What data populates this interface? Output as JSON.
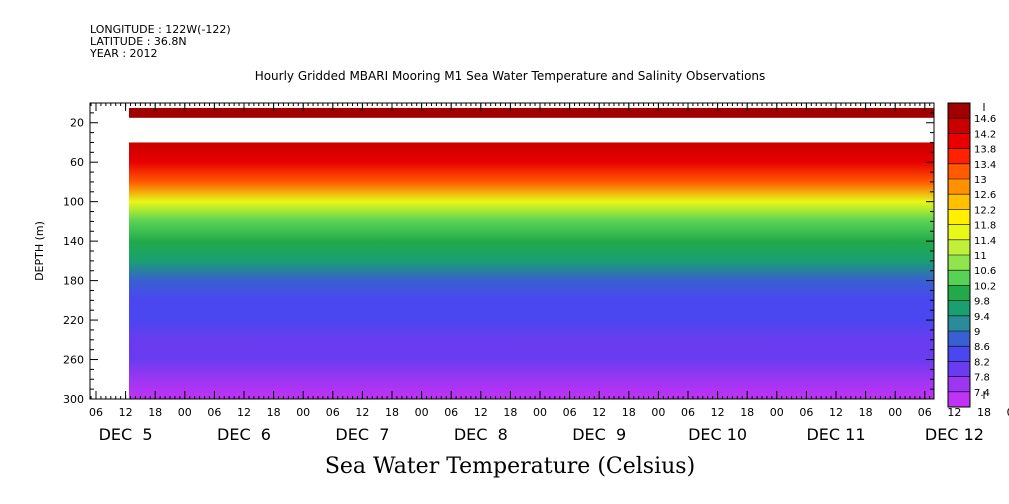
{
  "header": {
    "longitude": "LONGITUDE : 122W(-122)",
    "latitude": "LATITUDE : 36.8N",
    "year": "YEAR : 2012",
    "title": "Hourly Gridded MBARI Mooring M1 Sea Water Temperature and Salinity Observations"
  },
  "chart_data": {
    "type": "heatmap",
    "title": "Hourly Gridded MBARI Mooring M1 Sea Water Temperature and Salinity Observations",
    "xlabel": "Sea Water Temperature (Celsius)",
    "ylabel": "DEPTH (m)",
    "y_inverted": true,
    "ylim": [
      0,
      300
    ],
    "y_ticks": [
      20,
      60,
      100,
      140,
      180,
      220,
      260,
      300
    ],
    "hour_ticks": [
      "06",
      "12",
      "18",
      "00",
      "06",
      "12",
      "18",
      "00",
      "06",
      "12",
      "18",
      "00",
      "06",
      "12",
      "18",
      "00",
      "06",
      "12",
      "18",
      "00",
      "06",
      "12",
      "18",
      "00",
      "06",
      "12",
      "18",
      "00",
      "06",
      "12",
      "18",
      "00",
      "06"
    ],
    "day_labels": [
      "DEC  5",
      "DEC  6",
      "DEC  7",
      "DEC  8",
      "DEC  9",
      "DEC 10",
      "DEC 11",
      "DEC 12"
    ],
    "colorbar_labels": [
      "14.6",
      "14.2",
      "13.8",
      "13.4",
      "13",
      "12.6",
      "12.2",
      "11.8",
      "11.4",
      "11",
      "10.6",
      "10.2",
      "9.8",
      "9.4",
      "9",
      "8.6",
      "8.2",
      "7.8",
      "7.4"
    ],
    "colorbar_colors": [
      "#a00000",
      "#c80000",
      "#e80000",
      "#ff2200",
      "#ff5a00",
      "#ff9000",
      "#ffc000",
      "#fff000",
      "#e8f818",
      "#c0f03c",
      "#8ee64c",
      "#58d256",
      "#22aa4a",
      "#18a070",
      "#2a8c98",
      "#3860d0",
      "#4a46f0",
      "#6a3cf0",
      "#9c36f2",
      "#c032f6"
    ],
    "surface_layer": {
      "depth_top": 5,
      "depth_bottom": 15,
      "value": 14.6
    },
    "data_gap": {
      "depth_top": 15,
      "depth_bottom": 40
    },
    "profiles": [
      {
        "depth": 40,
        "value": 14.2
      },
      {
        "depth": 60,
        "value": 13.8
      },
      {
        "depth": 80,
        "value": 12.8
      },
      {
        "depth": 100,
        "value": 11.6
      },
      {
        "depth": 120,
        "value": 10.6
      },
      {
        "depth": 140,
        "value": 10.0
      },
      {
        "depth": 160,
        "value": 9.6
      },
      {
        "depth": 180,
        "value": 9.2
      },
      {
        "depth": 200,
        "value": 8.8
      },
      {
        "depth": 220,
        "value": 8.6
      },
      {
        "depth": 240,
        "value": 8.4
      },
      {
        "depth": 260,
        "value": 8.2
      },
      {
        "depth": 280,
        "value": 8.0
      },
      {
        "depth": 300,
        "value": 7.6
      }
    ]
  }
}
